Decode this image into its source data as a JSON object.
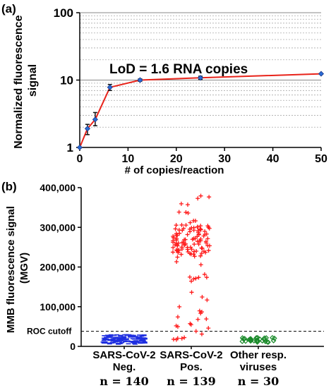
{
  "chart_data": [
    {
      "panel_label": "(a)",
      "type": "line",
      "title": "",
      "xlabel": "# of copies/reaction",
      "ylabel": "Normalized fluorescence signal",
      "yscale": "log",
      "xlim": [
        0,
        50
      ],
      "ylim": [
        1,
        100
      ],
      "x_ticks": [
        "0",
        "10",
        "20",
        "30",
        "40",
        "50"
      ],
      "y_ticks": [
        "1",
        "10",
        "100"
      ],
      "grid": "horizontal minor gridlines",
      "line_color": "#e8231a",
      "marker_color": "#2a6bd6",
      "annotation": "LoD = 1.6 RNA copies",
      "series": [
        {
          "x": [
            0,
            1.6,
            3.2,
            6.25,
            12.5,
            25,
            50
          ],
          "y": [
            1,
            1.9,
            2.6,
            7.8,
            10,
            10.8,
            12.4
          ],
          "y_err_low": [
            1,
            1.55,
            2.1,
            7.0,
            9.6,
            10.2,
            12.4
          ],
          "y_err_high": [
            1,
            2.2,
            3.3,
            8.6,
            10.4,
            11.4,
            12.4
          ]
        }
      ]
    },
    {
      "panel_label": "(b)",
      "type": "scatter",
      "title": "",
      "xlabel": "",
      "ylabel": "MMB fluorescence signal (MGV)",
      "ylim": [
        0,
        400000
      ],
      "y_ticks": [
        "0",
        "100,000",
        "200,000",
        "300,000",
        "400,000"
      ],
      "reference_line": {
        "label": "ROC cutoff",
        "value": 38000,
        "style": "dashed"
      },
      "categories": [
        {
          "line1": "SARS-CoV-2",
          "line2": "Neg.",
          "n_label": "n = 140"
        },
        {
          "line1": "SARS-CoV-2",
          "line2": "Pos.",
          "n_label": "n = 139"
        },
        {
          "line1": "Other resp.",
          "line2": "viruses",
          "n_label": "n = 30"
        }
      ],
      "series": [
        {
          "category": 0,
          "marker": "minus",
          "color": "#1f2fe0",
          "count": 140,
          "range": [
            5000,
            30000
          ],
          "median": 22000
        },
        {
          "category": 1,
          "marker": "plus",
          "color": "#ff1a1a",
          "count": 139,
          "range": [
            15000,
            385000
          ],
          "median": 270000
        },
        {
          "category": 2,
          "marker": "diamond",
          "color": "#1a8a2a",
          "count": 30,
          "range": [
            10000,
            22000
          ],
          "median": 16000
        }
      ]
    }
  ]
}
